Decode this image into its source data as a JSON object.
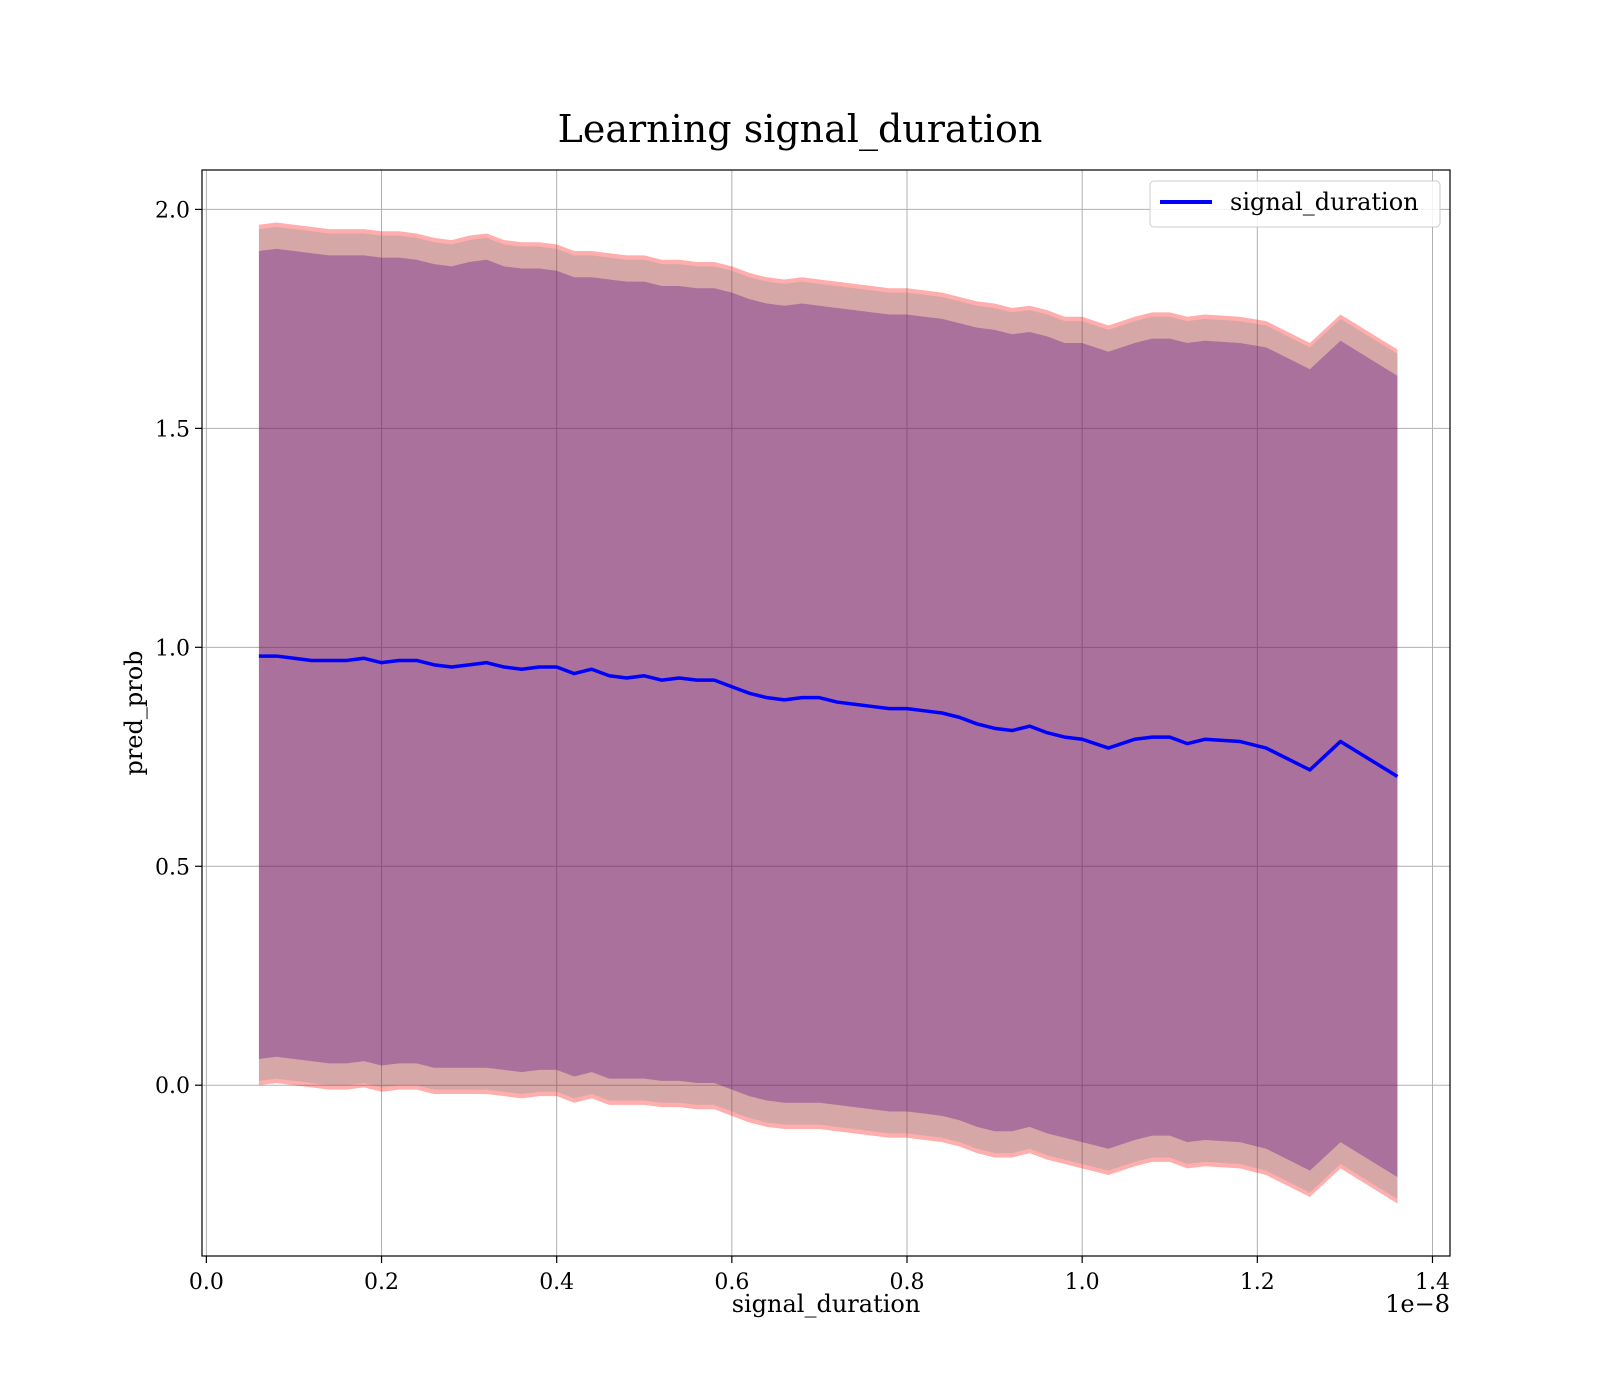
{
  "chart_data": {
    "type": "line",
    "title": "Learning signal_duration",
    "xlabel": "signal_duration",
    "ylabel": "pred_prob",
    "x_offset_text": "1e−8",
    "x_unit_note": "x values in units of 1e-8",
    "xlim": [
      -0.005,
      1.42
    ],
    "ylim": [
      -0.39,
      2.09
    ],
    "x_ticks": [
      0.0,
      0.2,
      0.4,
      0.6,
      0.8,
      1.0,
      1.2,
      1.4
    ],
    "x_tick_labels": [
      "0.0",
      "0.2",
      "0.4",
      "0.6",
      "0.8",
      "1.0",
      "1.2",
      "1.4"
    ],
    "y_ticks": [
      0.0,
      0.5,
      1.0,
      1.5,
      2.0
    ],
    "y_tick_labels": [
      "0.0",
      "0.5",
      "1.0",
      "1.5",
      "2.0"
    ],
    "grid": true,
    "legend_position": "top-right",
    "series": [
      {
        "name": "signal_duration",
        "color": "#0000ff",
        "x": [
          0.06,
          0.08,
          0.1,
          0.12,
          0.14,
          0.16,
          0.18,
          0.2,
          0.22,
          0.24,
          0.26,
          0.28,
          0.3,
          0.32,
          0.34,
          0.36,
          0.38,
          0.4,
          0.42,
          0.44,
          0.46,
          0.48,
          0.5,
          0.52,
          0.54,
          0.56,
          0.58,
          0.6,
          0.62,
          0.64,
          0.66,
          0.68,
          0.7,
          0.72,
          0.74,
          0.76,
          0.78,
          0.8,
          0.82,
          0.84,
          0.86,
          0.88,
          0.9,
          0.92,
          0.94,
          0.96,
          0.98,
          1.0,
          1.03,
          1.06,
          1.08,
          1.1,
          1.12,
          1.14,
          1.18,
          1.21,
          1.26,
          1.295,
          1.36
        ],
        "values": [
          0.98,
          0.98,
          0.975,
          0.97,
          0.97,
          0.97,
          0.975,
          0.965,
          0.97,
          0.97,
          0.96,
          0.955,
          0.96,
          0.965,
          0.955,
          0.95,
          0.955,
          0.955,
          0.94,
          0.95,
          0.935,
          0.93,
          0.935,
          0.925,
          0.93,
          0.925,
          0.925,
          0.91,
          0.895,
          0.885,
          0.88,
          0.885,
          0.885,
          0.875,
          0.87,
          0.865,
          0.86,
          0.86,
          0.855,
          0.85,
          0.84,
          0.825,
          0.815,
          0.81,
          0.82,
          0.805,
          0.795,
          0.79,
          0.77,
          0.79,
          0.795,
          0.795,
          0.78,
          0.79,
          0.785,
          0.77,
          0.72,
          0.785,
          0.705
        ]
      }
    ],
    "bands": [
      {
        "color": "#ff0000",
        "opacity": 0.32,
        "x": [
          0.06,
          0.08,
          0.1,
          0.12,
          0.14,
          0.16,
          0.18,
          0.2,
          0.22,
          0.24,
          0.26,
          0.28,
          0.3,
          0.32,
          0.34,
          0.36,
          0.38,
          0.4,
          0.42,
          0.44,
          0.46,
          0.48,
          0.5,
          0.52,
          0.54,
          0.56,
          0.58,
          0.6,
          0.62,
          0.64,
          0.66,
          0.68,
          0.7,
          0.72,
          0.74,
          0.76,
          0.78,
          0.8,
          0.82,
          0.84,
          0.86,
          0.88,
          0.9,
          0.92,
          0.94,
          0.96,
          0.98,
          1.0,
          1.03,
          1.06,
          1.08,
          1.1,
          1.12,
          1.14,
          1.18,
          1.21,
          1.26,
          1.295,
          1.36
        ],
        "upper": [
          1.965,
          1.97,
          1.965,
          1.96,
          1.955,
          1.955,
          1.955,
          1.95,
          1.95,
          1.945,
          1.935,
          1.93,
          1.94,
          1.945,
          1.93,
          1.925,
          1.925,
          1.92,
          1.905,
          1.905,
          1.9,
          1.895,
          1.895,
          1.885,
          1.885,
          1.88,
          1.88,
          1.87,
          1.855,
          1.845,
          1.84,
          1.845,
          1.84,
          1.835,
          1.83,
          1.825,
          1.82,
          1.82,
          1.815,
          1.81,
          1.8,
          1.79,
          1.785,
          1.775,
          1.78,
          1.77,
          1.755,
          1.755,
          1.735,
          1.755,
          1.765,
          1.765,
          1.755,
          1.76,
          1.755,
          1.745,
          1.695,
          1.76,
          1.68
        ],
        "lower": [
          0.0,
          0.005,
          0.0,
          -0.005,
          -0.01,
          -0.01,
          -0.005,
          -0.015,
          -0.01,
          -0.01,
          -0.02,
          -0.02,
          -0.02,
          -0.02,
          -0.025,
          -0.03,
          -0.025,
          -0.025,
          -0.04,
          -0.03,
          -0.045,
          -0.045,
          -0.045,
          -0.05,
          -0.05,
          -0.055,
          -0.055,
          -0.07,
          -0.085,
          -0.095,
          -0.1,
          -0.1,
          -0.1,
          -0.105,
          -0.11,
          -0.115,
          -0.12,
          -0.12,
          -0.125,
          -0.13,
          -0.14,
          -0.155,
          -0.165,
          -0.165,
          -0.155,
          -0.17,
          -0.18,
          -0.19,
          -0.205,
          -0.185,
          -0.175,
          -0.175,
          -0.19,
          -0.185,
          -0.19,
          -0.205,
          -0.255,
          -0.19,
          -0.27
        ]
      },
      {
        "color": "#008b8b",
        "opacity": 0.16,
        "x": [
          0.06,
          0.08,
          0.1,
          0.12,
          0.14,
          0.16,
          0.18,
          0.2,
          0.22,
          0.24,
          0.26,
          0.28,
          0.3,
          0.32,
          0.34,
          0.36,
          0.38,
          0.4,
          0.42,
          0.44,
          0.46,
          0.48,
          0.5,
          0.52,
          0.54,
          0.56,
          0.58,
          0.6,
          0.62,
          0.64,
          0.66,
          0.68,
          0.7,
          0.72,
          0.74,
          0.76,
          0.78,
          0.8,
          0.82,
          0.84,
          0.86,
          0.88,
          0.9,
          0.92,
          0.94,
          0.96,
          0.98,
          1.0,
          1.03,
          1.06,
          1.08,
          1.1,
          1.12,
          1.14,
          1.18,
          1.21,
          1.26,
          1.295,
          1.36
        ],
        "upper": [
          1.955,
          1.96,
          1.955,
          1.95,
          1.945,
          1.945,
          1.945,
          1.94,
          1.94,
          1.935,
          1.925,
          1.92,
          1.93,
          1.935,
          1.92,
          1.915,
          1.915,
          1.91,
          1.895,
          1.895,
          1.89,
          1.885,
          1.885,
          1.875,
          1.875,
          1.87,
          1.87,
          1.86,
          1.845,
          1.835,
          1.83,
          1.835,
          1.83,
          1.825,
          1.82,
          1.815,
          1.81,
          1.81,
          1.805,
          1.8,
          1.79,
          1.78,
          1.775,
          1.765,
          1.77,
          1.76,
          1.745,
          1.745,
          1.725,
          1.745,
          1.755,
          1.755,
          1.745,
          1.75,
          1.745,
          1.735,
          1.685,
          1.75,
          1.67
        ],
        "lower": [
          0.01,
          0.015,
          0.01,
          0.005,
          0.0,
          0.0,
          0.005,
          -0.005,
          0.0,
          0.0,
          -0.01,
          -0.01,
          -0.01,
          -0.01,
          -0.015,
          -0.02,
          -0.015,
          -0.015,
          -0.03,
          -0.02,
          -0.035,
          -0.035,
          -0.035,
          -0.04,
          -0.04,
          -0.045,
          -0.045,
          -0.06,
          -0.075,
          -0.085,
          -0.09,
          -0.09,
          -0.09,
          -0.095,
          -0.1,
          -0.105,
          -0.11,
          -0.11,
          -0.115,
          -0.12,
          -0.13,
          -0.145,
          -0.155,
          -0.155,
          -0.145,
          -0.16,
          -0.17,
          -0.18,
          -0.195,
          -0.175,
          -0.165,
          -0.165,
          -0.18,
          -0.175,
          -0.18,
          -0.195,
          -0.245,
          -0.18,
          -0.26
        ]
      },
      {
        "color": "#4b0082",
        "opacity": 0.32,
        "x": [
          0.06,
          0.08,
          0.1,
          0.12,
          0.14,
          0.16,
          0.18,
          0.2,
          0.22,
          0.24,
          0.26,
          0.28,
          0.3,
          0.32,
          0.34,
          0.36,
          0.38,
          0.4,
          0.42,
          0.44,
          0.46,
          0.48,
          0.5,
          0.52,
          0.54,
          0.56,
          0.58,
          0.6,
          0.62,
          0.64,
          0.66,
          0.68,
          0.7,
          0.72,
          0.74,
          0.76,
          0.78,
          0.8,
          0.82,
          0.84,
          0.86,
          0.88,
          0.9,
          0.92,
          0.94,
          0.96,
          0.98,
          1.0,
          1.03,
          1.06,
          1.08,
          1.1,
          1.12,
          1.14,
          1.18,
          1.21,
          1.26,
          1.295,
          1.36
        ],
        "upper": [
          1.905,
          1.91,
          1.905,
          1.9,
          1.895,
          1.895,
          1.895,
          1.89,
          1.89,
          1.885,
          1.875,
          1.87,
          1.88,
          1.885,
          1.87,
          1.865,
          1.865,
          1.86,
          1.845,
          1.845,
          1.84,
          1.835,
          1.835,
          1.825,
          1.825,
          1.82,
          1.82,
          1.81,
          1.795,
          1.785,
          1.78,
          1.785,
          1.78,
          1.775,
          1.77,
          1.765,
          1.76,
          1.76,
          1.755,
          1.75,
          1.74,
          1.73,
          1.725,
          1.715,
          1.72,
          1.71,
          1.695,
          1.695,
          1.675,
          1.695,
          1.705,
          1.705,
          1.695,
          1.7,
          1.695,
          1.685,
          1.635,
          1.7,
          1.62
        ],
        "lower": [
          0.06,
          0.065,
          0.06,
          0.055,
          0.05,
          0.05,
          0.055,
          0.045,
          0.05,
          0.05,
          0.04,
          0.04,
          0.04,
          0.04,
          0.035,
          0.03,
          0.035,
          0.035,
          0.02,
          0.03,
          0.015,
          0.015,
          0.015,
          0.01,
          0.01,
          0.005,
          0.005,
          -0.01,
          -0.025,
          -0.035,
          -0.04,
          -0.04,
          -0.04,
          -0.045,
          -0.05,
          -0.055,
          -0.06,
          -0.06,
          -0.065,
          -0.07,
          -0.08,
          -0.095,
          -0.105,
          -0.105,
          -0.095,
          -0.11,
          -0.12,
          -0.13,
          -0.145,
          -0.125,
          -0.115,
          -0.115,
          -0.13,
          -0.125,
          -0.13,
          -0.145,
          -0.195,
          -0.13,
          -0.21
        ]
      }
    ]
  }
}
